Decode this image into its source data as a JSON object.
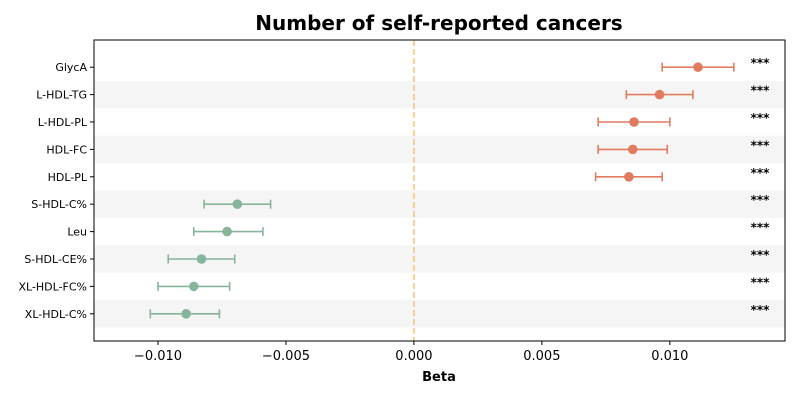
{
  "chart_data": {
    "type": "scatter",
    "title": "Number of self-reported cancers",
    "xlabel": "Beta",
    "xlim": [
      -0.0125,
      0.0145
    ],
    "xticks": [
      -0.01,
      -0.005,
      0.0,
      0.005,
      0.01
    ],
    "xtick_labels": [
      "−0.010",
      "−0.005",
      "0.000",
      "0.005",
      "0.010"
    ],
    "reference_line": 0.0,
    "categories": [
      "GlycA",
      "L-HDL-TG",
      "L-HDL-PL",
      "HDL-FC",
      "HDL-PL",
      "S-HDL-C%",
      "Leu",
      "S-HDL-CE%",
      "XL-HDL-FC%",
      "XL-HDL-C%"
    ],
    "beta": [
      0.0111,
      0.0096,
      0.0086,
      0.00855,
      0.0084,
      -0.0069,
      -0.0073,
      -0.0083,
      -0.0086,
      -0.0089
    ],
    "ci_low": [
      0.0097,
      0.0083,
      0.0072,
      0.0072,
      0.0071,
      -0.0082,
      -0.0086,
      -0.0096,
      -0.01,
      -0.0103
    ],
    "ci_high": [
      0.0125,
      0.0109,
      0.01,
      0.0099,
      0.0097,
      -0.0056,
      -0.0059,
      -0.007,
      -0.0072,
      -0.0076
    ],
    "significance": [
      "***",
      "***",
      "***",
      "***",
      "***",
      "***",
      "***",
      "***",
      "***",
      "***"
    ],
    "colors": {
      "positive": "#e07b5f",
      "negative": "#86b59c",
      "reference": "#f5c87a",
      "band": "#f5f5f5"
    },
    "grid": false
  }
}
